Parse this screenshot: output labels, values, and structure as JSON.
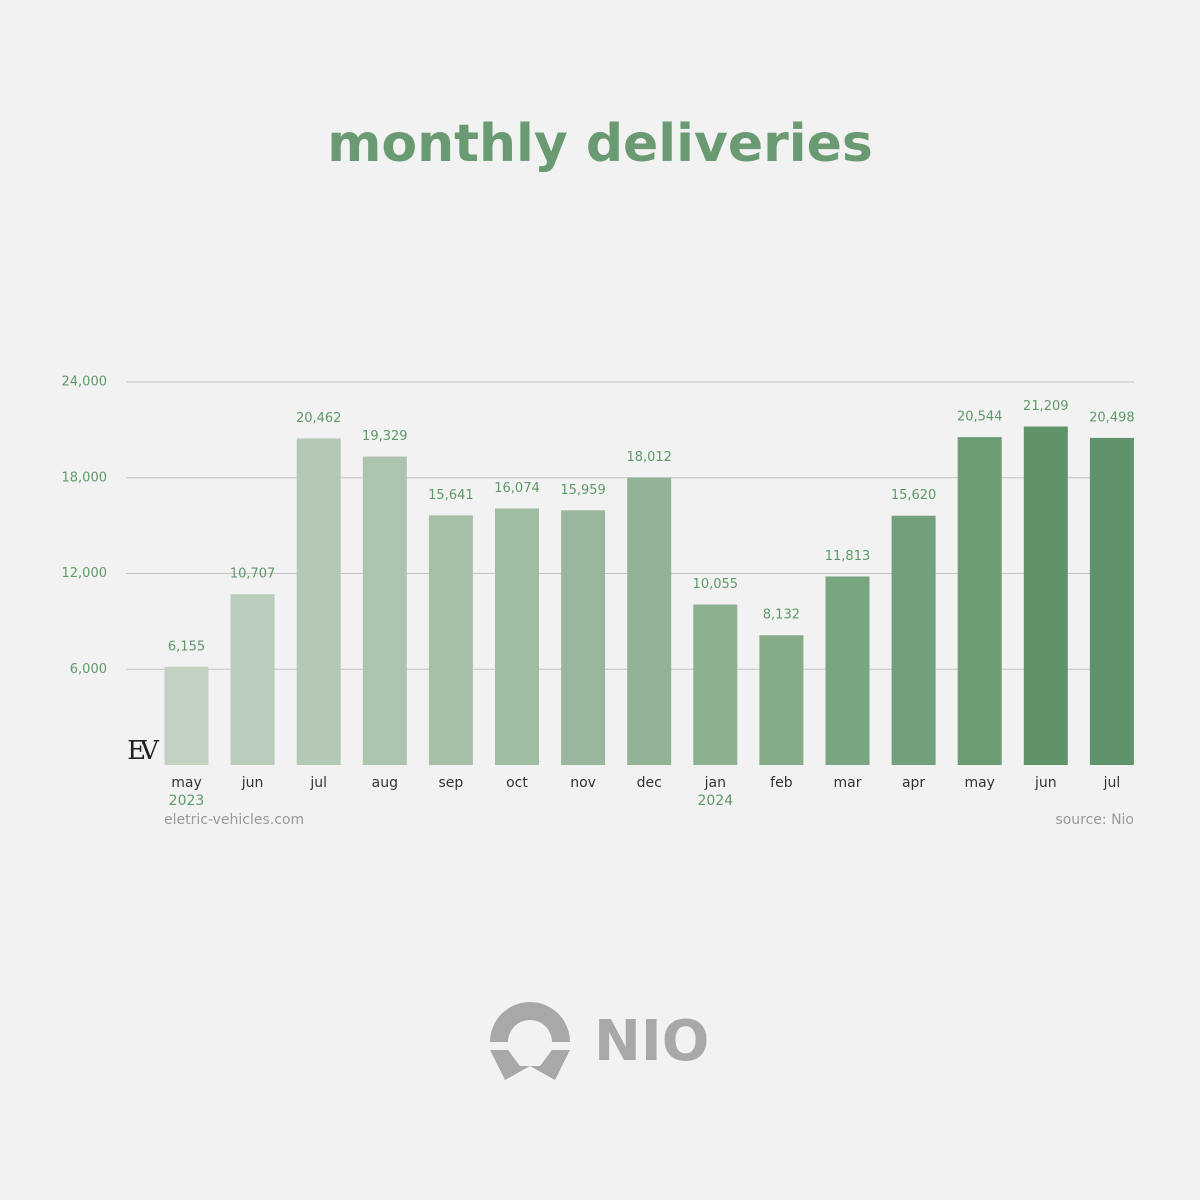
{
  "chart_data": {
    "type": "bar",
    "title": "monthly deliveries",
    "categories": [
      "may",
      "jun",
      "jul",
      "aug",
      "sep",
      "oct",
      "nov",
      "dec",
      "jan",
      "feb",
      "mar",
      "apr",
      "may",
      "jun",
      "jul"
    ],
    "year_labels": [
      "2023",
      null,
      null,
      null,
      null,
      null,
      null,
      null,
      "2024",
      null,
      null,
      null,
      null,
      null,
      null
    ],
    "values": [
      6155,
      10707,
      20462,
      19329,
      15641,
      16074,
      15959,
      18012,
      10055,
      8132,
      11813,
      15620,
      20544,
      21209,
      20498
    ],
    "value_labels": [
      "6,155",
      "10,707",
      "20,462",
      "19,329",
      "15,641",
      "16,074",
      "15,959",
      "18,012",
      "10,055",
      "8,132",
      "11,813",
      "15,620",
      "20,544",
      "21,209",
      "20,498"
    ],
    "colors": [
      "#c1d2c2",
      "#bacdbc",
      "#b3c9b5",
      "#acc4ae",
      "#a6c0a8",
      "#a0bca2",
      "#99b79c",
      "#93b396",
      "#8caf8f",
      "#85ab89",
      "#7aa581",
      "#72a07a",
      "#6c9c74",
      "#5f946a",
      "#5e936b"
    ],
    "ylim": [
      0,
      24000
    ],
    "yticks": [
      {
        "value": 6000,
        "label": "6,000"
      },
      {
        "value": 12000,
        "label": "12,000"
      },
      {
        "value": 18000,
        "label": "18,000"
      },
      {
        "value": 24000,
        "label": "24,000"
      }
    ],
    "grid": true,
    "watermark": "EV",
    "footer_left": "eletric-vehicles.com",
    "footer_right": "source: Nio",
    "logo_text": "NIO"
  }
}
